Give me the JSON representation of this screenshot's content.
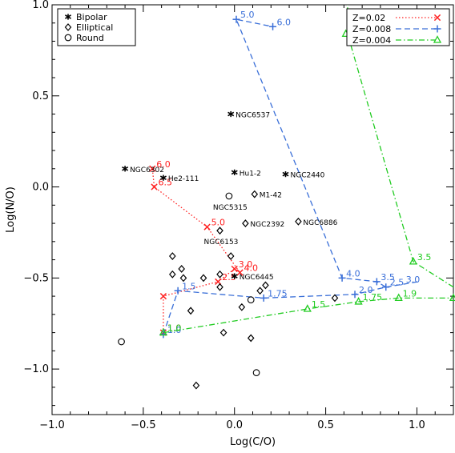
{
  "chart_data": {
    "type": "scatter",
    "xlabel": "Log(C/O)",
    "ylabel": "Log(N/O)",
    "xlim": [
      -1.0,
      1.2
    ],
    "ylim": [
      -1.25,
      1.0
    ],
    "xticks": [
      -1.0,
      -0.5,
      0.0,
      0.5,
      1.0
    ],
    "xtick_labels": [
      "−1.0",
      "−0.5",
      "0.0",
      "0.5",
      "1.0"
    ],
    "yticks": [
      -1.0,
      -0.5,
      0.0,
      0.5,
      1.0
    ],
    "ytick_labels": [
      "−1.0",
      "−0.5",
      "0.0",
      "0.5",
      "1.0"
    ],
    "grid": false,
    "symbol_legend": {
      "placement": "top-left",
      "entries": [
        {
          "marker": "asterisk",
          "label": "Bipolar"
        },
        {
          "marker": "diamond",
          "label": "Elliptical"
        },
        {
          "marker": "circle",
          "label": "Round"
        }
      ]
    },
    "points": {
      "bipolar": [
        {
          "x": -0.6,
          "y": 0.1,
          "label": "NGC6302"
        },
        {
          "x": -0.39,
          "y": 0.05,
          "label": "He2-111"
        },
        {
          "x": -0.02,
          "y": 0.4,
          "label": "NGC6537"
        },
        {
          "x": 0.0,
          "y": 0.08,
          "label": "Hu1-2"
        },
        {
          "x": 0.28,
          "y": 0.07,
          "label": "NGC2440"
        },
        {
          "x": 0.0,
          "y": -0.49,
          "label": "NGC6445"
        }
      ],
      "elliptical": [
        {
          "x": 0.11,
          "y": -0.04,
          "label": "M1-42"
        },
        {
          "x": 0.06,
          "y": -0.2,
          "label": "NGC2392"
        },
        {
          "x": 0.35,
          "y": -0.19,
          "label": "NGC6886"
        },
        {
          "x": -0.08,
          "y": -0.24,
          "label": "NGC6153"
        },
        {
          "x": -0.34,
          "y": -0.38,
          "label": ""
        },
        {
          "x": -0.29,
          "y": -0.45,
          "label": ""
        },
        {
          "x": -0.34,
          "y": -0.48,
          "label": ""
        },
        {
          "x": -0.02,
          "y": -0.38,
          "label": ""
        },
        {
          "x": -0.28,
          "y": -0.5,
          "label": ""
        },
        {
          "x": -0.17,
          "y": -0.5,
          "label": ""
        },
        {
          "x": -0.08,
          "y": -0.48,
          "label": ""
        },
        {
          "x": -0.08,
          "y": -0.55,
          "label": ""
        },
        {
          "x": 0.17,
          "y": -0.54,
          "label": ""
        },
        {
          "x": 0.14,
          "y": -0.57,
          "label": ""
        },
        {
          "x": -0.24,
          "y": -0.68,
          "label": ""
        },
        {
          "x": 0.04,
          "y": -0.66,
          "label": ""
        },
        {
          "x": -0.06,
          "y": -0.8,
          "label": ""
        },
        {
          "x": 0.09,
          "y": -0.83,
          "label": ""
        },
        {
          "x": -0.21,
          "y": -1.09,
          "label": ""
        },
        {
          "x": 0.55,
          "y": -0.61,
          "label": ""
        }
      ],
      "round": [
        {
          "x": -0.03,
          "y": -0.05,
          "label": "NGC5315"
        },
        {
          "x": 0.09,
          "y": -0.62,
          "label": ""
        },
        {
          "x": -0.62,
          "y": -0.85,
          "label": ""
        },
        {
          "x": 0.12,
          "y": -1.02,
          "label": ""
        }
      ]
    },
    "series": [
      {
        "name": "Z=0.02",
        "color": "#ff2020",
        "marker": "x",
        "dash": "dotted",
        "points": [
          {
            "x": -0.39,
            "y": -0.8,
            "label": "1.0"
          },
          {
            "x": -0.39,
            "y": -0.6,
            "label": ""
          },
          {
            "x": -0.09,
            "y": -0.52,
            "label": "2.5"
          },
          {
            "x": 0.0,
            "y": -0.45,
            "label": "3.0"
          },
          {
            "x": 0.03,
            "y": -0.47,
            "label": "4.0"
          },
          {
            "x": -0.15,
            "y": -0.22,
            "label": "5.0"
          },
          {
            "x": -0.44,
            "y": 0.0,
            "label": "6.5"
          },
          {
            "x": -0.45,
            "y": 0.1,
            "label": "6.0"
          }
        ]
      },
      {
        "name": "Z=0.008",
        "color": "#3a6fd8",
        "marker": "plus",
        "dash": "dashed",
        "points": [
          {
            "x": -0.39,
            "y": -0.81,
            "label": "1.0"
          },
          {
            "x": -0.31,
            "y": -0.57,
            "label": "1.5"
          },
          {
            "x": 0.16,
            "y": -0.61,
            "label": "1.75"
          },
          {
            "x": 0.66,
            "y": -0.59,
            "label": "2.0"
          },
          {
            "x": 0.83,
            "y": -0.55,
            "label": "2.5"
          },
          {
            "x": 0.78,
            "y": -0.52,
            "label": "3.5"
          },
          {
            "x": 0.59,
            "y": -0.5,
            "label": "4.0"
          },
          {
            "x": 0.01,
            "y": 0.92,
            "label": "5.0"
          },
          {
            "x": 0.21,
            "y": 0.88,
            "label": "6.0"
          }
        ],
        "extra_segments": [
          [
            [
              0.83,
              -0.55
            ],
            [
              1.01,
              -0.52
            ]
          ]
        ],
        "extra_labels": [
          {
            "x": 1.01,
            "y": -0.52,
            "label": "3.0"
          }
        ]
      },
      {
        "name": "Z=0.004",
        "color": "#22cc22",
        "marker": "triangle",
        "dash": "dashdot",
        "points": [
          {
            "x": -0.39,
            "y": -0.8,
            "label": "1.0"
          },
          {
            "x": 0.4,
            "y": -0.67,
            "label": "1.5"
          },
          {
            "x": 0.68,
            "y": -0.63,
            "label": "1.75"
          },
          {
            "x": 0.9,
            "y": -0.61,
            "label": "1.9"
          },
          {
            "x": 1.2,
            "y": -0.61,
            "label": ""
          }
        ],
        "extra_segments": [
          [
            [
              1.2,
              -0.55
            ],
            [
              0.98,
              -0.41
            ],
            [
              0.62,
              0.84
            ],
            [
              0.62,
              1.0
            ]
          ]
        ],
        "extra_points": [
          {
            "x": 0.98,
            "y": -0.41,
            "label": "3.5"
          },
          {
            "x": 0.61,
            "y": 0.84,
            "label": ""
          }
        ]
      }
    ],
    "series_legend_placement": "top-right"
  }
}
